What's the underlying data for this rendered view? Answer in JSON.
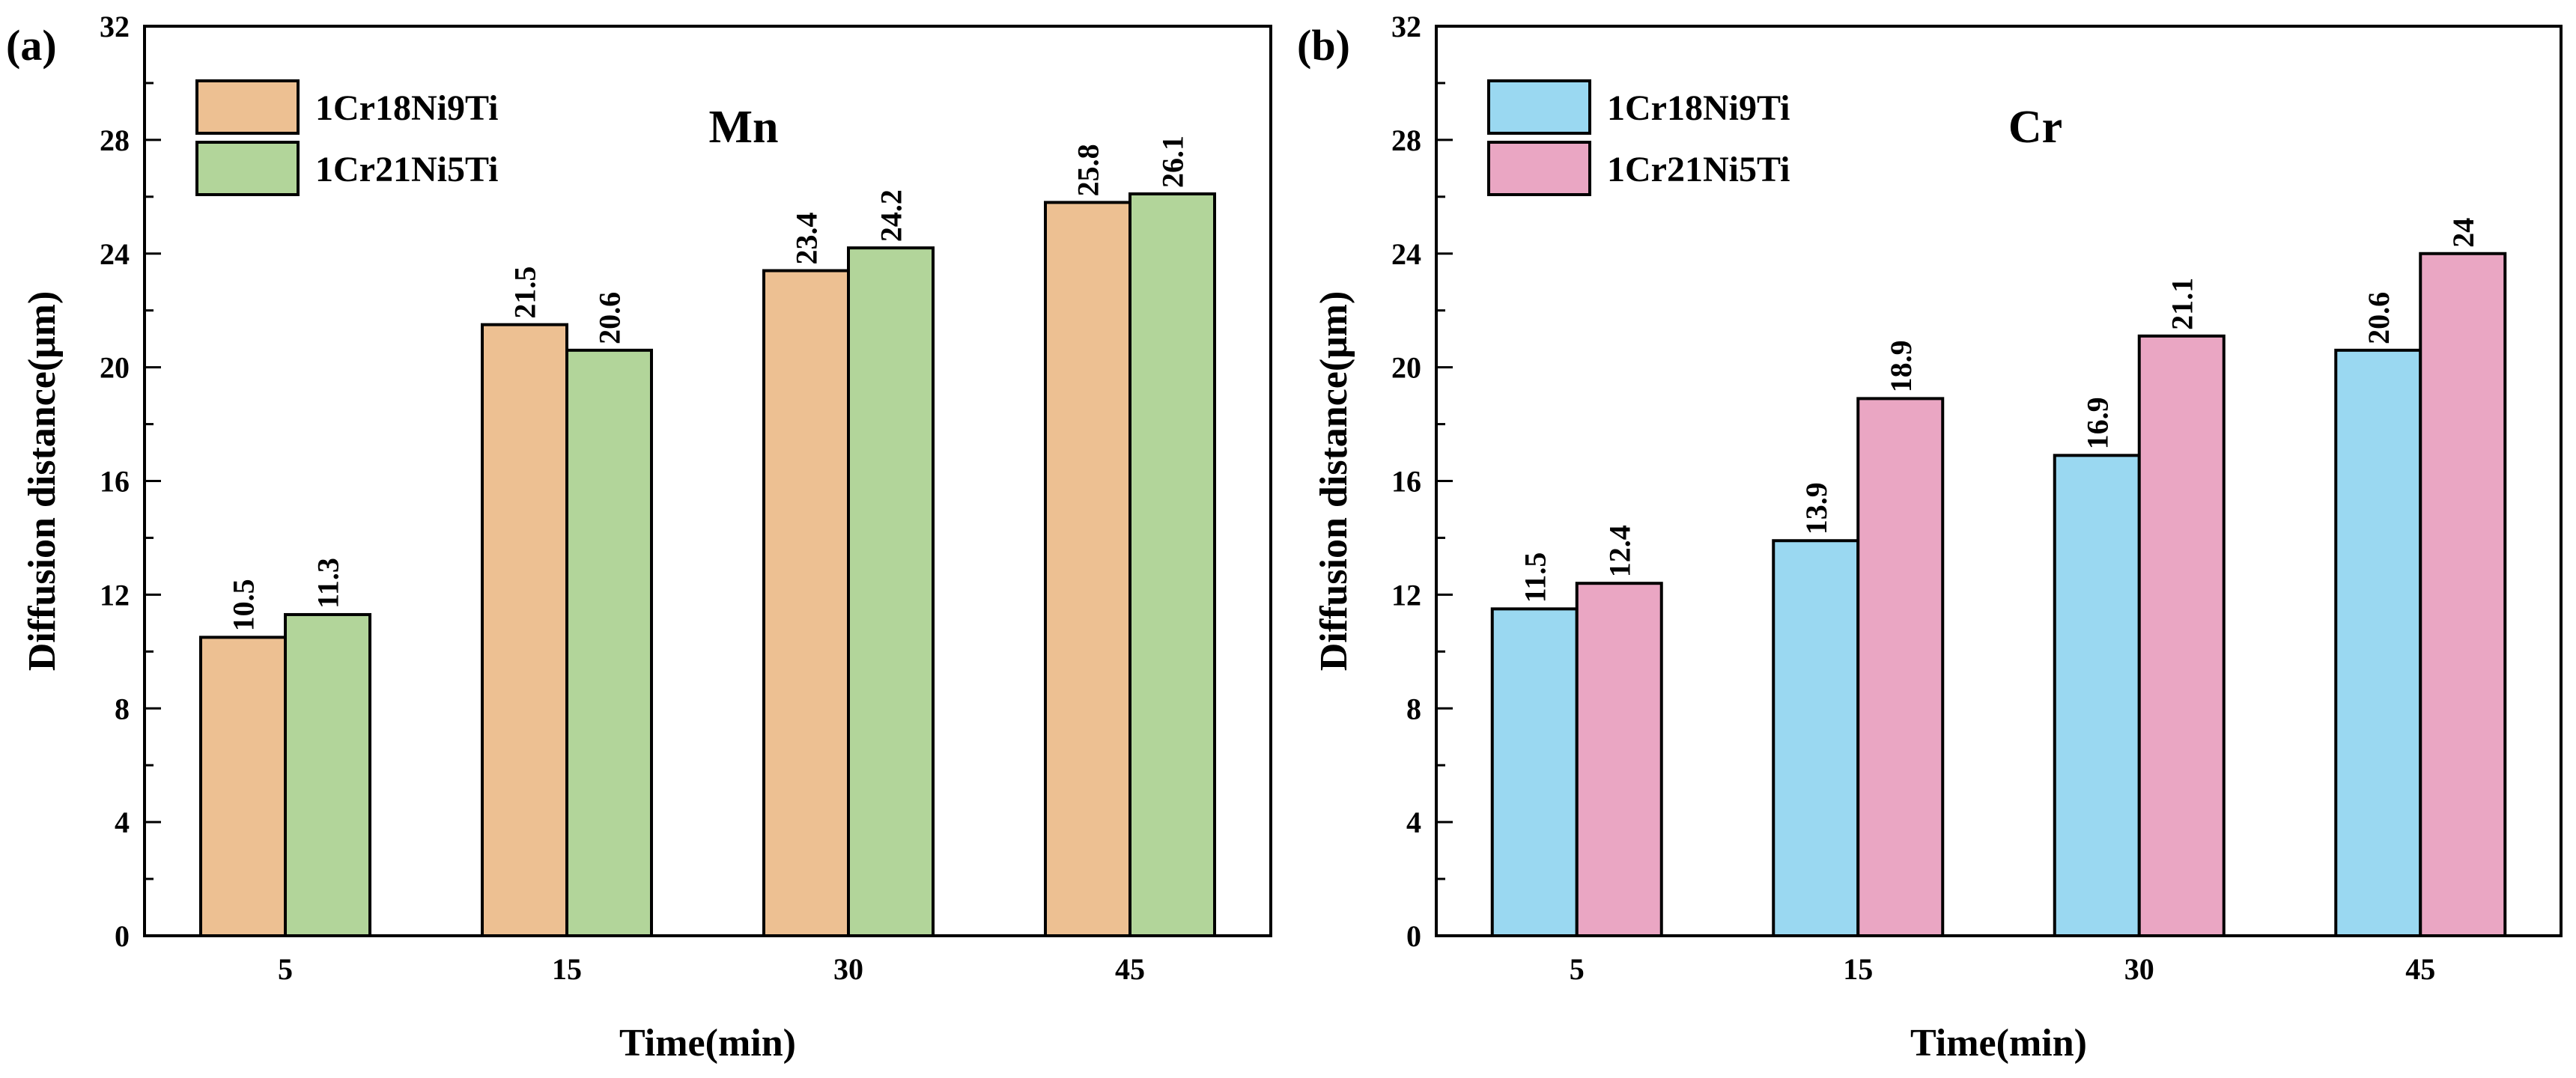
{
  "chart_data": [
    {
      "type": "bar",
      "panel_label": "(a)",
      "element": "Mn",
      "xlabel": "Time(min)",
      "ylabel": "Diffusion distance(μm)",
      "categories": [
        "5",
        "15",
        "30",
        "45"
      ],
      "ylim": [
        0,
        32
      ],
      "yticks": [
        "0",
        "4",
        "8",
        "12",
        "16",
        "20",
        "24",
        "28",
        "32"
      ],
      "legend_position": "top-left",
      "series": [
        {
          "name": "1Cr18Ni9Ti",
          "color": "#EDC092",
          "values": [
            10.5,
            21.5,
            23.4,
            25.8
          ],
          "labels": [
            "10.5",
            "21.5",
            "23.4",
            "25.8"
          ]
        },
        {
          "name": "1Cr21Ni5Ti",
          "color": "#B2D59A",
          "values": [
            11.3,
            20.6,
            24.2,
            26.1
          ],
          "labels": [
            "11.3",
            "20.6",
            "24.2",
            "26.1"
          ]
        }
      ]
    },
    {
      "type": "bar",
      "panel_label": "(b)",
      "element": "Cr",
      "xlabel": "Time(min)",
      "ylabel": "Diffusion distance(μm)",
      "categories": [
        "5",
        "15",
        "30",
        "45"
      ],
      "ylim": [
        0,
        32
      ],
      "yticks": [
        "0",
        "4",
        "8",
        "12",
        "16",
        "20",
        "24",
        "28",
        "32"
      ],
      "legend_position": "top-left",
      "series": [
        {
          "name": "1Cr18Ni9Ti",
          "color": "#9AD8F1",
          "values": [
            11.5,
            13.9,
            16.9,
            20.6
          ],
          "labels": [
            "11.5",
            "13.9",
            "16.9",
            "20.6"
          ]
        },
        {
          "name": "1Cr21Ni5Ti",
          "color": "#EAA6C3",
          "values": [
            12.4,
            18.9,
            21.1,
            24
          ],
          "labels": [
            "12.4",
            "18.9",
            "21.1",
            "24"
          ]
        }
      ]
    }
  ]
}
